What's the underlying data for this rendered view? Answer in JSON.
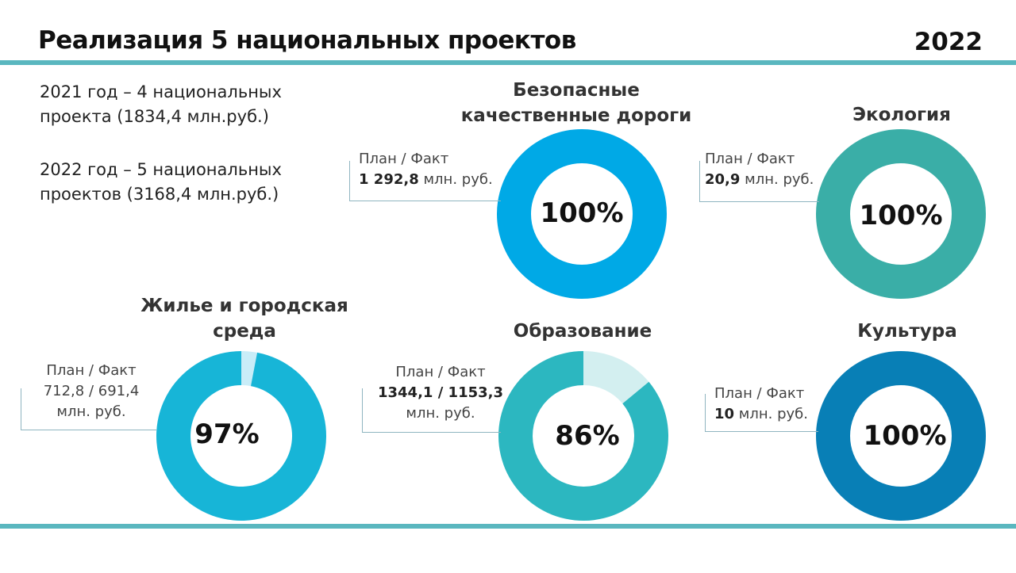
{
  "header": {
    "title": "Реализация 5 национальных проектов",
    "year": "2022"
  },
  "intro": {
    "line2021": "2021 год – 4 национальных проекта (1834,4 млн.руб.)",
    "line2022": "2022 год – 5 национальных проектов (3168,4 млн.руб.)"
  },
  "colors": {
    "accent_line": "#5ab7bf"
  },
  "chart_data": [
    {
      "type": "pie",
      "name": "roads",
      "title": "Безопасные качественные дороги",
      "percent": 100,
      "label": "100%",
      "callout_head": "План / Факт",
      "callout_value": "1 292,8",
      "callout_unit": "млн. руб.",
      "color": "#00a9e6",
      "rest_color": "#c5ecf7"
    },
    {
      "type": "pie",
      "name": "ecology",
      "title": "Экология",
      "percent": 100,
      "label": "100%",
      "callout_head": "План / Факт",
      "callout_value": "20,9",
      "callout_unit": "млн. руб.",
      "color": "#3aaea7",
      "rest_color": "#d4eff0"
    },
    {
      "type": "pie",
      "name": "housing",
      "title": "Жилье и городская среда",
      "percent": 97,
      "label": "97%",
      "callout_head": "План / Факт",
      "callout_value": "712,8 / 691,4",
      "callout_unit": "млн. руб.",
      "color": "#17b5d7",
      "rest_color": "#c9edf8"
    },
    {
      "type": "pie",
      "name": "education",
      "title": "Образование",
      "percent": 86,
      "label": "86%",
      "callout_head": "План / Факт",
      "callout_value": "1344,1 / 1153,3",
      "callout_unit": "млн. руб.",
      "color": "#2cb7c0",
      "rest_color": "#d3eff0"
    },
    {
      "type": "pie",
      "name": "culture",
      "title": "Культура",
      "percent": 100,
      "label": "100%",
      "callout_head": "План / Факт",
      "callout_value": "10",
      "callout_unit": "млн. руб.",
      "color": "#087fb6",
      "rest_color": "#cfe6f2"
    }
  ]
}
